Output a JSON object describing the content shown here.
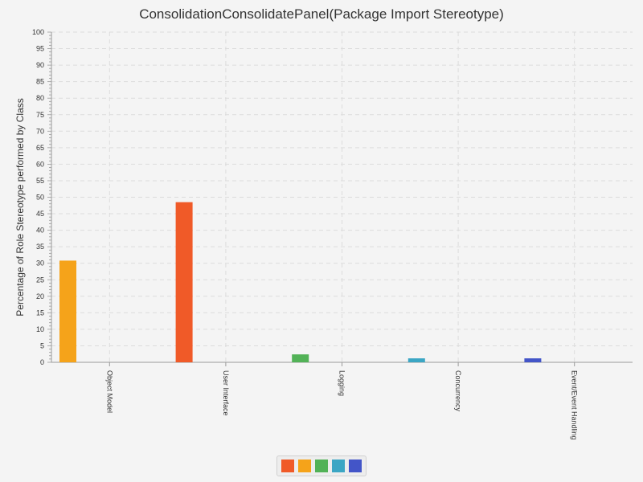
{
  "chart_data": {
    "type": "bar",
    "title": "ConsolidationConsolidatePanel(Package Import Stereotype)",
    "xlabel": "",
    "ylabel": "Percentage of Role Stereotype performed by Class",
    "ylim": [
      0,
      100
    ],
    "ytick_step": 5,
    "grid": true,
    "legend_position": "bottom",
    "categories": [
      "Object Model",
      "User Interface",
      "Logging",
      "Concurrency",
      "Event/Event Handling"
    ],
    "series": [
      {
        "color": "#f05a28",
        "values": [
          0,
          48.5,
          0,
          0,
          0
        ]
      },
      {
        "color": "#f5a31a",
        "values": [
          30.8,
          0,
          0,
          0,
          0
        ]
      },
      {
        "color": "#52b257",
        "values": [
          0,
          0,
          2.4,
          0,
          0
        ]
      },
      {
        "color": "#3ba6c4",
        "values": [
          0,
          0,
          0,
          1.2,
          0
        ]
      },
      {
        "color": "#4355c8",
        "values": [
          0,
          0,
          0,
          0,
          1.2
        ]
      }
    ]
  }
}
